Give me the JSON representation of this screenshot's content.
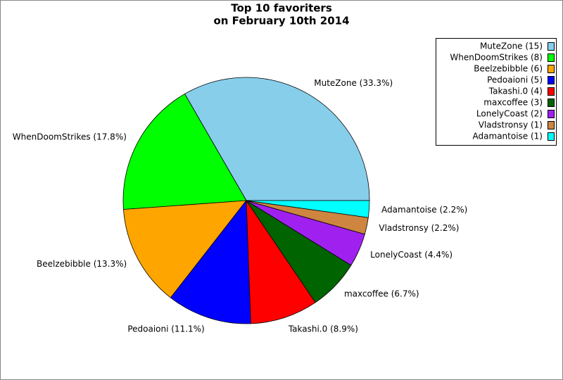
{
  "chart_data": {
    "type": "pie",
    "title": "Top 10 favoriters",
    "subtitle": "on February 10th 2014",
    "categories": [
      "MuteZone (15)",
      "WhenDoomStrikes (8)",
      "Beelzebibble (6)",
      "Pedoaioni (5)",
      "Takashi.0 (4)",
      "maxcoffee (3)",
      "LonelyCoast (2)",
      "Vladstronsy (1)",
      "Adamantoise (1)"
    ],
    "values": [
      33.3,
      17.8,
      13.3,
      11.1,
      8.9,
      6.7,
      4.4,
      2.2,
      2.2
    ],
    "value_labels": [
      "MuteZone (33.3%)",
      "WhenDoomStrikes (17.8%)",
      "Beelzebibble (13.3%)",
      "Pedoaioni (11.1%)",
      "Takashi.0 (8.9%)",
      "maxcoffee (6.7%)",
      "LonelyCoast (4.4%)",
      "Vladstronsy (2.2%)",
      "Adamantoise (2.2%)"
    ],
    "colors": [
      "#87ceeb",
      "#00ff00",
      "#ffa500",
      "#0000ff",
      "#ff0000",
      "#006400",
      "#a020f0",
      "#cd853f",
      "#00ffff"
    ],
    "legend": "upper right"
  }
}
